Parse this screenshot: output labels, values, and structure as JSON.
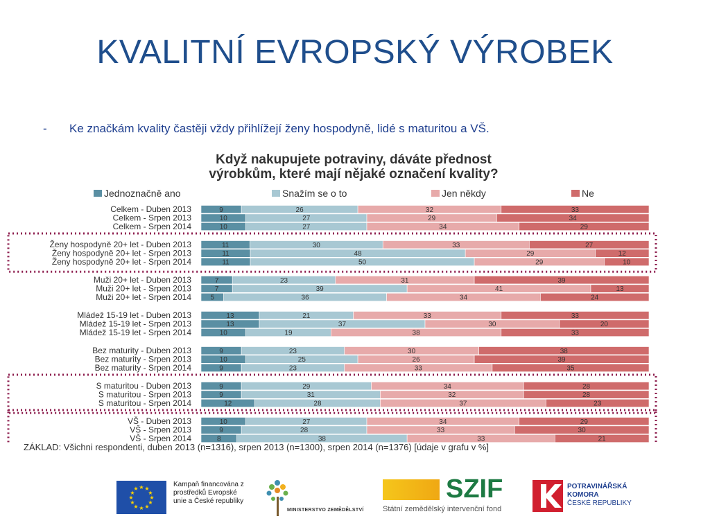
{
  "slide": {
    "title": "KVALITNÍ EVROPSKÝ VÝROBEK",
    "bullet_dash": "-",
    "bullet": "Ke značkám kvality častěji vždy přihlížejí ženy hospodyně, lidé s maturitou a VŠ."
  },
  "chart_data": {
    "type": "bar",
    "stacked": true,
    "horizontal": true,
    "title_line1": "Když nakupujete potraviny, dáváte přednost",
    "title_line2": "výrobkům, které mají nějaké označení kvality?",
    "legend_position": "top",
    "series": [
      {
        "name": "Jednoznačně ano",
        "color": "#5a8fa3"
      },
      {
        "name": "Snažím se o to",
        "color": "#a8c8d3"
      },
      {
        "name": "Jen někdy",
        "color": "#e7aaaa"
      },
      {
        "name": "Ne",
        "color": "#cf6b6b"
      }
    ],
    "groups": [
      {
        "highlight": false,
        "rows": [
          {
            "label": "Celkem - Duben 2013",
            "values": [
              9,
              26,
              32,
              33
            ]
          },
          {
            "label": "Celkem - Srpen 2013",
            "values": [
              10,
              27,
              29,
              34
            ]
          },
          {
            "label": "Celkem - Srpen 2014",
            "values": [
              10,
              27,
              34,
              29
            ]
          }
        ]
      },
      {
        "highlight": true,
        "rows": [
          {
            "label": "Ženy hospodyně 20+ let - Duben 2013",
            "values": [
              11,
              30,
              33,
              27
            ]
          },
          {
            "label": "Ženy hospodyně 20+ let - Srpen 2013",
            "values": [
              11,
              48,
              29,
              12
            ]
          },
          {
            "label": "Ženy hospodyně 20+ let - Srpen 2014",
            "values": [
              11,
              50,
              29,
              10
            ]
          }
        ]
      },
      {
        "highlight": false,
        "rows": [
          {
            "label": "Muži 20+ let - Duben 2013",
            "values": [
              7,
              23,
              31,
              39
            ]
          },
          {
            "label": "Muži 20+ let - Srpen 2013",
            "values": [
              7,
              39,
              41,
              13
            ]
          },
          {
            "label": "Muži 20+ let - Srpen 2014",
            "values": [
              5,
              36,
              34,
              24
            ]
          }
        ]
      },
      {
        "highlight": false,
        "rows": [
          {
            "label": "Mládež 15-19 let - Duben 2013",
            "values": [
              13,
              21,
              33,
              33
            ]
          },
          {
            "label": "Mládež 15-19 let - Srpen 2013",
            "values": [
              13,
              37,
              30,
              20
            ]
          },
          {
            "label": "Mládež 15-19 let - Srpen 2014",
            "values": [
              10,
              19,
              38,
              33
            ]
          }
        ]
      },
      {
        "highlight": false,
        "rows": [
          {
            "label": "Bez maturity - Duben 2013",
            "values": [
              9,
              23,
              30,
              38
            ]
          },
          {
            "label": "Bez maturity - Srpen 2013",
            "values": [
              10,
              25,
              26,
              39
            ]
          },
          {
            "label": "Bez maturity - Srpen 2014",
            "values": [
              9,
              23,
              33,
              35
            ]
          }
        ]
      },
      {
        "highlight": true,
        "rows": [
          {
            "label": "S maturitou - Duben 2013",
            "values": [
              9,
              29,
              34,
              28
            ]
          },
          {
            "label": "S maturitou - Srpen 2013",
            "values": [
              9,
              31,
              32,
              28
            ]
          },
          {
            "label": "S maturitou - Srpen 2014",
            "values": [
              12,
              28,
              37,
              23
            ]
          }
        ]
      },
      {
        "highlight": true,
        "rows": [
          {
            "label": "VŠ - Duben 2013",
            "values": [
              10,
              27,
              34,
              29
            ]
          },
          {
            "label": "VŠ - Srpen 2013",
            "values": [
              9,
              28,
              33,
              30
            ]
          },
          {
            "label": "VŠ - Srpen 2014",
            "values": [
              8,
              38,
              33,
              21
            ]
          }
        ]
      }
    ],
    "footnote": "ZÁKLAD: Všichni respondenti, duben 2013 (n=1316), srpen 2013 (n=1300), srpen 2014 (n=1376) [údaje v grafu v %]"
  },
  "logos": {
    "eu_text": "Kampaň financována z prostředků Evropské unie a České republiky",
    "mze": "MINISTERSTVO ZEMĚDĚLSTVÍ",
    "szif": "SZIF",
    "szif_sub": "Státní zemědělský intervenční fond",
    "pk_line1": "POTRAVINÁŘSKÁ",
    "pk_line2": "KOMORA",
    "pk_line3": "ČESKÉ REPUBLIKY",
    "eu_flag_icon": "eu-flag-icon",
    "mze_icon": "tree-icon",
    "pk_icon": "k-logo-icon"
  }
}
